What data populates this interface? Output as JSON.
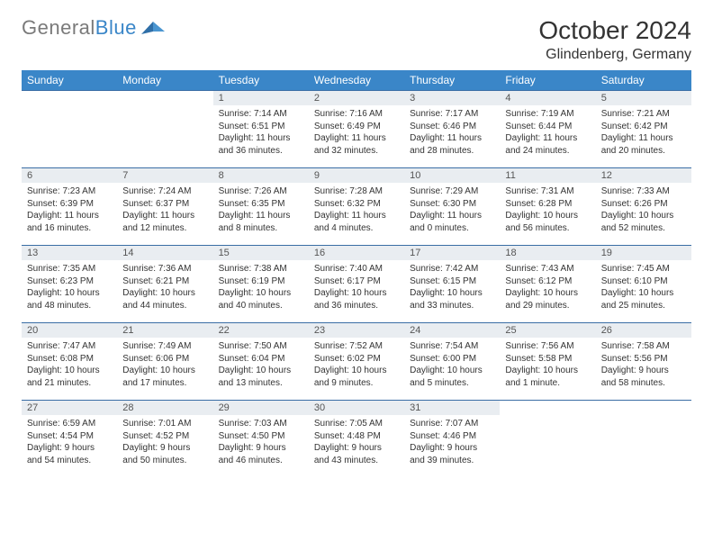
{
  "logo": {
    "text1": "General",
    "text2": "Blue"
  },
  "title": "October 2024",
  "location": "Glindenberg, Germany",
  "dayHeaders": [
    "Sunday",
    "Monday",
    "Tuesday",
    "Wednesday",
    "Thursday",
    "Friday",
    "Saturday"
  ],
  "colors": {
    "headerBg": "#3a86c8",
    "headerText": "#ffffff",
    "dayNumBg": "#e9edf1",
    "weekBorder": "#3a6ea5",
    "logoGray": "#7a7a7a",
    "logoBlue": "#3a86c8"
  },
  "cellFontSizePt": 8,
  "startOffset": 2,
  "days": [
    {
      "n": 1,
      "sr": "7:14 AM",
      "ss": "6:51 PM",
      "dl": "11 hours and 36 minutes."
    },
    {
      "n": 2,
      "sr": "7:16 AM",
      "ss": "6:49 PM",
      "dl": "11 hours and 32 minutes."
    },
    {
      "n": 3,
      "sr": "7:17 AM",
      "ss": "6:46 PM",
      "dl": "11 hours and 28 minutes."
    },
    {
      "n": 4,
      "sr": "7:19 AM",
      "ss": "6:44 PM",
      "dl": "11 hours and 24 minutes."
    },
    {
      "n": 5,
      "sr": "7:21 AM",
      "ss": "6:42 PM",
      "dl": "11 hours and 20 minutes."
    },
    {
      "n": 6,
      "sr": "7:23 AM",
      "ss": "6:39 PM",
      "dl": "11 hours and 16 minutes."
    },
    {
      "n": 7,
      "sr": "7:24 AM",
      "ss": "6:37 PM",
      "dl": "11 hours and 12 minutes."
    },
    {
      "n": 8,
      "sr": "7:26 AM",
      "ss": "6:35 PM",
      "dl": "11 hours and 8 minutes."
    },
    {
      "n": 9,
      "sr": "7:28 AM",
      "ss": "6:32 PM",
      "dl": "11 hours and 4 minutes."
    },
    {
      "n": 10,
      "sr": "7:29 AM",
      "ss": "6:30 PM",
      "dl": "11 hours and 0 minutes."
    },
    {
      "n": 11,
      "sr": "7:31 AM",
      "ss": "6:28 PM",
      "dl": "10 hours and 56 minutes."
    },
    {
      "n": 12,
      "sr": "7:33 AM",
      "ss": "6:26 PM",
      "dl": "10 hours and 52 minutes."
    },
    {
      "n": 13,
      "sr": "7:35 AM",
      "ss": "6:23 PM",
      "dl": "10 hours and 48 minutes."
    },
    {
      "n": 14,
      "sr": "7:36 AM",
      "ss": "6:21 PM",
      "dl": "10 hours and 44 minutes."
    },
    {
      "n": 15,
      "sr": "7:38 AM",
      "ss": "6:19 PM",
      "dl": "10 hours and 40 minutes."
    },
    {
      "n": 16,
      "sr": "7:40 AM",
      "ss": "6:17 PM",
      "dl": "10 hours and 36 minutes."
    },
    {
      "n": 17,
      "sr": "7:42 AM",
      "ss": "6:15 PM",
      "dl": "10 hours and 33 minutes."
    },
    {
      "n": 18,
      "sr": "7:43 AM",
      "ss": "6:12 PM",
      "dl": "10 hours and 29 minutes."
    },
    {
      "n": 19,
      "sr": "7:45 AM",
      "ss": "6:10 PM",
      "dl": "10 hours and 25 minutes."
    },
    {
      "n": 20,
      "sr": "7:47 AM",
      "ss": "6:08 PM",
      "dl": "10 hours and 21 minutes."
    },
    {
      "n": 21,
      "sr": "7:49 AM",
      "ss": "6:06 PM",
      "dl": "10 hours and 17 minutes."
    },
    {
      "n": 22,
      "sr": "7:50 AM",
      "ss": "6:04 PM",
      "dl": "10 hours and 13 minutes."
    },
    {
      "n": 23,
      "sr": "7:52 AM",
      "ss": "6:02 PM",
      "dl": "10 hours and 9 minutes."
    },
    {
      "n": 24,
      "sr": "7:54 AM",
      "ss": "6:00 PM",
      "dl": "10 hours and 5 minutes."
    },
    {
      "n": 25,
      "sr": "7:56 AM",
      "ss": "5:58 PM",
      "dl": "10 hours and 1 minute."
    },
    {
      "n": 26,
      "sr": "7:58 AM",
      "ss": "5:56 PM",
      "dl": "9 hours and 58 minutes."
    },
    {
      "n": 27,
      "sr": "6:59 AM",
      "ss": "4:54 PM",
      "dl": "9 hours and 54 minutes."
    },
    {
      "n": 28,
      "sr": "7:01 AM",
      "ss": "4:52 PM",
      "dl": "9 hours and 50 minutes."
    },
    {
      "n": 29,
      "sr": "7:03 AM",
      "ss": "4:50 PM",
      "dl": "9 hours and 46 minutes."
    },
    {
      "n": 30,
      "sr": "7:05 AM",
      "ss": "4:48 PM",
      "dl": "9 hours and 43 minutes."
    },
    {
      "n": 31,
      "sr": "7:07 AM",
      "ss": "4:46 PM",
      "dl": "9 hours and 39 minutes."
    }
  ],
  "labels": {
    "sunrise": "Sunrise:",
    "sunset": "Sunset:",
    "daylight": "Daylight:"
  }
}
